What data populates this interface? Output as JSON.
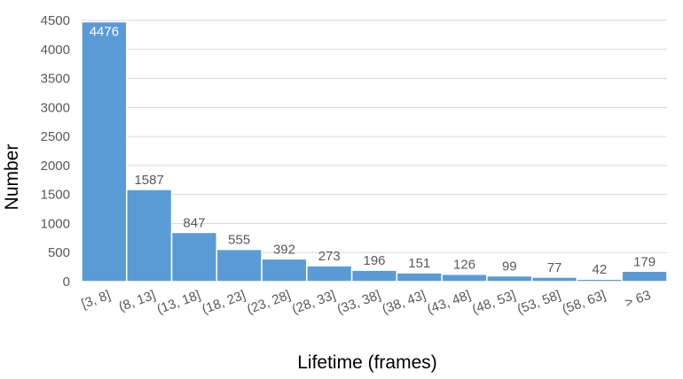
{
  "chart_data": {
    "type": "bar",
    "title": "",
    "xlabel": "Lifetime (frames)",
    "ylabel": "Number",
    "ylim": [
      0,
      4500
    ],
    "yticks": [
      0,
      500,
      1000,
      1500,
      2000,
      2500,
      3000,
      3500,
      4000,
      4500
    ],
    "grid": true,
    "legend": "none",
    "categories": [
      "[3, 8]",
      "(8, 13]",
      "(13, 18]",
      "(18, 23]",
      "(23, 28]",
      "(28, 33]",
      "(33, 38]",
      "(38, 43]",
      "(43, 48]",
      "(48, 53]",
      "(53, 58]",
      "(58, 63]",
      "> 63"
    ],
    "values": [
      4476,
      1587,
      847,
      555,
      392,
      273,
      196,
      151,
      126,
      99,
      77,
      42,
      179
    ],
    "bar_color": "#5b9bd5"
  }
}
